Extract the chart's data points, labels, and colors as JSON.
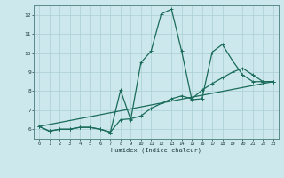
{
  "xlabel": "Humidex (Indice chaleur)",
  "ylabel": "",
  "xlim": [
    -0.5,
    23.5
  ],
  "ylim": [
    5.5,
    12.5
  ],
  "xticks": [
    0,
    1,
    2,
    3,
    4,
    5,
    6,
    7,
    8,
    9,
    10,
    11,
    12,
    13,
    14,
    15,
    16,
    17,
    18,
    19,
    20,
    21,
    22,
    23
  ],
  "yticks": [
    6,
    7,
    8,
    9,
    10,
    11,
    12
  ],
  "bg_color": "#cde8ec",
  "grid_color": "#aacdd4",
  "line_color": "#1a6b5a",
  "line1_x": [
    0,
    1,
    2,
    3,
    4,
    5,
    6,
    7,
    8,
    9,
    10,
    11,
    12,
    13,
    14,
    15,
    16,
    17,
    18,
    19,
    20,
    21,
    22,
    23
  ],
  "line1_y": [
    6.15,
    5.9,
    6.0,
    6.0,
    6.1,
    6.1,
    6.0,
    5.85,
    8.05,
    6.5,
    9.5,
    10.1,
    12.05,
    12.3,
    10.1,
    7.55,
    7.6,
    10.05,
    10.45,
    9.6,
    8.85,
    8.5,
    8.5,
    8.5
  ],
  "line2_x": [
    0,
    1,
    2,
    3,
    4,
    5,
    6,
    7,
    8,
    9,
    10,
    11,
    12,
    13,
    14,
    15,
    16,
    17,
    18,
    19,
    20,
    21,
    22,
    23
  ],
  "line2_y": [
    6.15,
    5.9,
    6.0,
    6.0,
    6.1,
    6.1,
    6.0,
    5.85,
    6.5,
    6.55,
    6.7,
    7.1,
    7.35,
    7.6,
    7.75,
    7.6,
    8.05,
    8.4,
    8.7,
    9.0,
    9.2,
    8.85,
    8.5,
    8.5
  ],
  "line3_x": [
    0,
    23
  ],
  "line3_y": [
    6.15,
    8.5
  ],
  "marker_size": 2.5,
  "linewidth": 0.9
}
